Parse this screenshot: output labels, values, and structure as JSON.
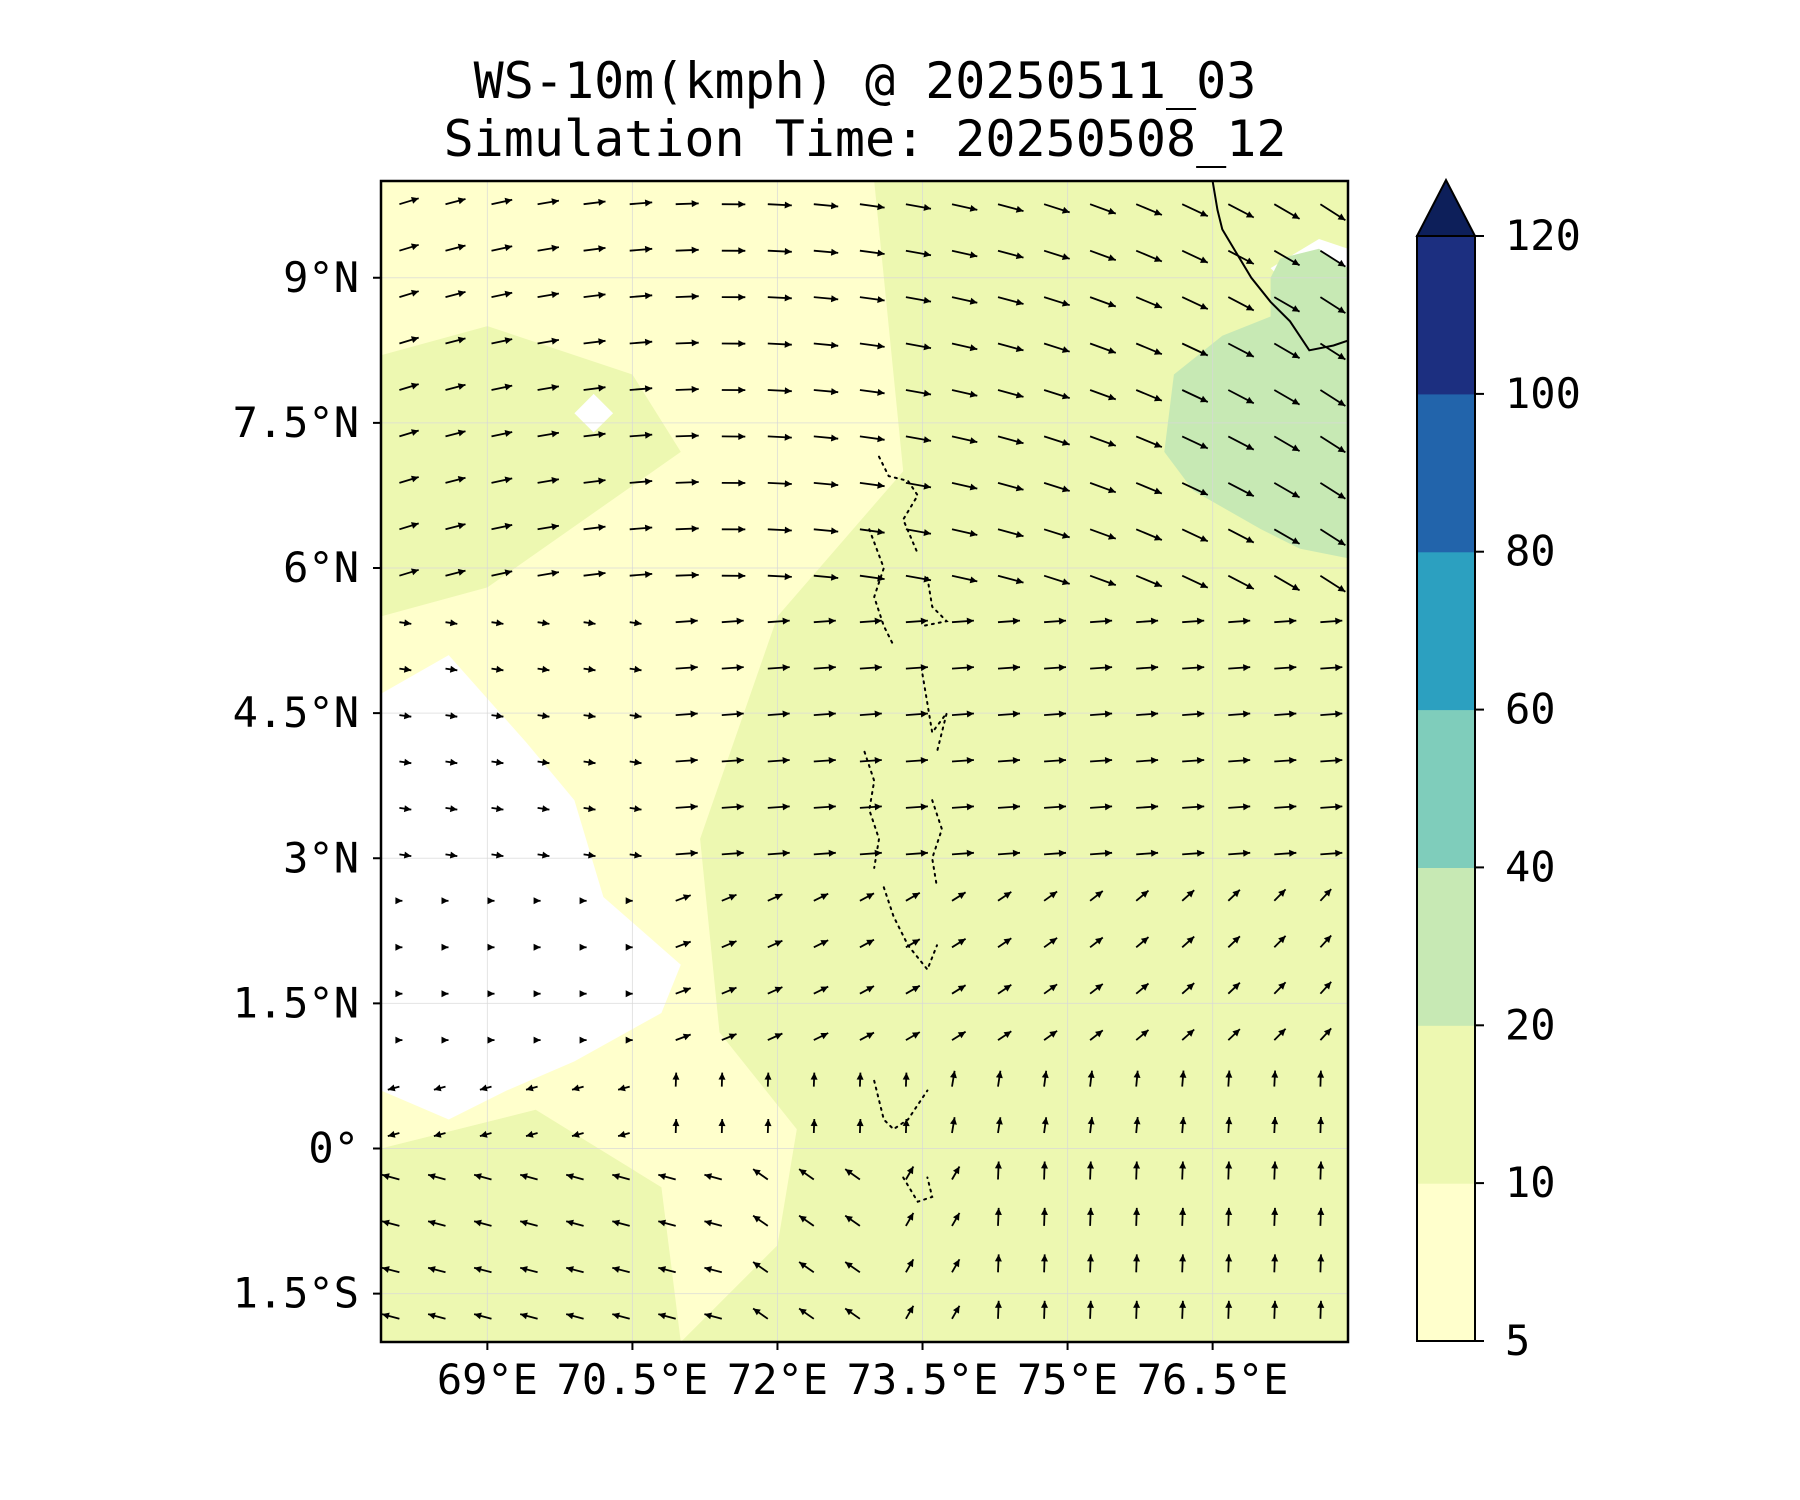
{
  "title": {
    "line1": "WS-10m(kmph) @ 20250511_03",
    "line2": "Simulation Time: 20250508_12"
  },
  "chart_data": {
    "type": "heatmap",
    "variable": "10 m wind speed (kmph) with wind direction vectors",
    "xlim": [
      67.9,
      77.9
    ],
    "ylim": [
      -2.0,
      10.0
    ],
    "x_ticks": [
      {
        "value": 69.0,
        "label": "69°E"
      },
      {
        "value": 70.5,
        "label": "70.5°E"
      },
      {
        "value": 72.0,
        "label": "72°E"
      },
      {
        "value": 73.5,
        "label": "73.5°E"
      },
      {
        "value": 75.0,
        "label": "75°E"
      },
      {
        "value": 76.5,
        "label": "76.5°E"
      }
    ],
    "y_ticks": [
      {
        "value": 9.0,
        "label": "9°N"
      },
      {
        "value": 7.5,
        "label": "7.5°N"
      },
      {
        "value": 6.0,
        "label": "6°N"
      },
      {
        "value": 4.5,
        "label": "4.5°N"
      },
      {
        "value": 3.0,
        "label": "3°N"
      },
      {
        "value": 1.5,
        "label": "1.5°N"
      },
      {
        "value": 0.0,
        "label": "0°"
      },
      {
        "value": -1.5,
        "label": "1.5°S"
      }
    ],
    "grid": true,
    "colorbar": {
      "levels": [
        5,
        10,
        20,
        40,
        60,
        80,
        100,
        120
      ],
      "labels": [
        "5",
        "10",
        "20",
        "40",
        "60",
        "80",
        "100",
        "120"
      ],
      "colors": [
        "#ffffcc",
        "#edf8b1",
        "#c7e9b4",
        "#7fcdbb",
        "#2ca0c0",
        "#2264ab",
        "#1c2f80"
      ],
      "extend_color": "#0d1f5a",
      "extend": "max",
      "placement": "right"
    },
    "regions": [
      {
        "name": "calm",
        "level": "below 5",
        "color": "#ffffff",
        "polygon": [
          [
            67.9,
            4.7
          ],
          [
            68.6,
            5.1
          ],
          [
            69.4,
            4.2
          ],
          [
            69.9,
            3.6
          ],
          [
            70.2,
            2.6
          ],
          [
            71.0,
            1.9
          ],
          [
            70.8,
            1.4
          ],
          [
            69.9,
            0.9
          ],
          [
            69.2,
            0.6
          ],
          [
            68.6,
            0.3
          ],
          [
            67.9,
            0.6
          ]
        ]
      },
      {
        "name": "calm-patch-north",
        "level": "below 5",
        "color": "#ffffff",
        "polygon": [
          [
            69.9,
            7.6
          ],
          [
            70.1,
            7.8
          ],
          [
            70.3,
            7.6
          ],
          [
            70.1,
            7.4
          ]
        ]
      },
      {
        "name": "calm-patch-ne",
        "level": "below 5",
        "color": "#ffffff",
        "polygon": [
          [
            77.1,
            9.1
          ],
          [
            77.6,
            9.4
          ],
          [
            77.9,
            9.3
          ],
          [
            77.9,
            8.9
          ],
          [
            77.3,
            8.9
          ]
        ]
      },
      {
        "name": "moderate-band",
        "level": "10-20",
        "color": "#edf8b1",
        "polygon": [
          [
            67.9,
            10.0
          ],
          [
            73.0,
            10.0
          ],
          [
            73.3,
            7.0
          ],
          [
            72.0,
            5.5
          ],
          [
            71.2,
            3.2
          ],
          [
            71.4,
            1.2
          ],
          [
            72.2,
            0.2
          ],
          [
            72.0,
            -1.0
          ],
          [
            71.0,
            -2.0
          ],
          [
            77.9,
            -2.0
          ],
          [
            77.9,
            10.0
          ]
        ]
      },
      {
        "name": "moderate-band-west",
        "level": "10-20",
        "color": "#edf8b1",
        "polygon": [
          [
            67.9,
            5.5
          ],
          [
            69.0,
            5.8
          ],
          [
            70.0,
            6.5
          ],
          [
            71.0,
            7.2
          ],
          [
            70.5,
            8.0
          ],
          [
            69.0,
            8.5
          ],
          [
            67.9,
            8.2
          ]
        ]
      },
      {
        "name": "moderate-band-south",
        "level": "10-20",
        "color": "#edf8b1",
        "polygon": [
          [
            67.9,
            0.0
          ],
          [
            69.5,
            0.4
          ],
          [
            70.8,
            -0.4
          ],
          [
            71.0,
            -2.0
          ],
          [
            67.9,
            -2.0
          ]
        ]
      },
      {
        "name": "fresh-core-northeast",
        "level": "20-40",
        "color": "#c7e9b4",
        "polygon": [
          [
            77.2,
            9.2
          ],
          [
            77.6,
            9.3
          ],
          [
            77.9,
            9.1
          ],
          [
            77.9,
            6.1
          ],
          [
            77.4,
            6.2
          ],
          [
            77.0,
            6.4
          ],
          [
            76.3,
            6.8
          ],
          [
            76.0,
            7.2
          ],
          [
            76.1,
            8.0
          ],
          [
            76.6,
            8.4
          ],
          [
            77.1,
            8.6
          ],
          [
            77.1,
            9.0
          ]
        ]
      }
    ],
    "coastline_india": [
      [
        76.5,
        10.0
      ],
      [
        76.55,
        9.7
      ],
      [
        76.6,
        9.5
      ],
      [
        76.75,
        9.25
      ],
      [
        76.9,
        9.0
      ],
      [
        77.1,
        8.75
      ],
      [
        77.3,
        8.55
      ],
      [
        77.5,
        8.25
      ],
      [
        77.75,
        8.3
      ],
      [
        77.9,
        8.35
      ]
    ],
    "maldives_atolls": [
      [
        [
          73.05,
          7.15
        ],
        [
          73.15,
          6.95
        ],
        [
          73.35,
          6.9
        ],
        [
          73.45,
          6.75
        ],
        [
          73.3,
          6.5
        ],
        [
          73.45,
          6.15
        ]
      ],
      [
        [
          72.95,
          6.4
        ],
        [
          73.1,
          6.0
        ],
        [
          73.0,
          5.7
        ],
        [
          73.1,
          5.4
        ],
        [
          73.2,
          5.2
        ]
      ],
      [
        [
          73.55,
          5.9
        ],
        [
          73.6,
          5.6
        ],
        [
          73.75,
          5.45
        ],
        [
          73.5,
          5.4
        ]
      ],
      [
        [
          73.5,
          4.9
        ],
        [
          73.55,
          4.6
        ],
        [
          73.6,
          4.3
        ],
        [
          73.75,
          4.5
        ],
        [
          73.65,
          4.1
        ]
      ],
      [
        [
          72.9,
          4.1
        ],
        [
          73.0,
          3.8
        ],
        [
          72.95,
          3.5
        ],
        [
          73.05,
          3.2
        ],
        [
          73.0,
          2.9
        ]
      ],
      [
        [
          73.6,
          3.6
        ],
        [
          73.7,
          3.3
        ],
        [
          73.6,
          3.0
        ],
        [
          73.65,
          2.7
        ]
      ],
      [
        [
          73.1,
          2.7
        ],
        [
          73.2,
          2.4
        ],
        [
          73.35,
          2.1
        ],
        [
          73.55,
          1.85
        ],
        [
          73.65,
          2.1
        ]
      ],
      [
        [
          73.0,
          0.7
        ],
        [
          73.1,
          0.3
        ],
        [
          73.2,
          0.2
        ],
        [
          73.35,
          0.3
        ],
        [
          73.55,
          0.6
        ]
      ],
      [
        [
          73.3,
          -0.3
        ],
        [
          73.45,
          -0.55
        ],
        [
          73.6,
          -0.5
        ],
        [
          73.55,
          -0.3
        ]
      ]
    ]
  }
}
